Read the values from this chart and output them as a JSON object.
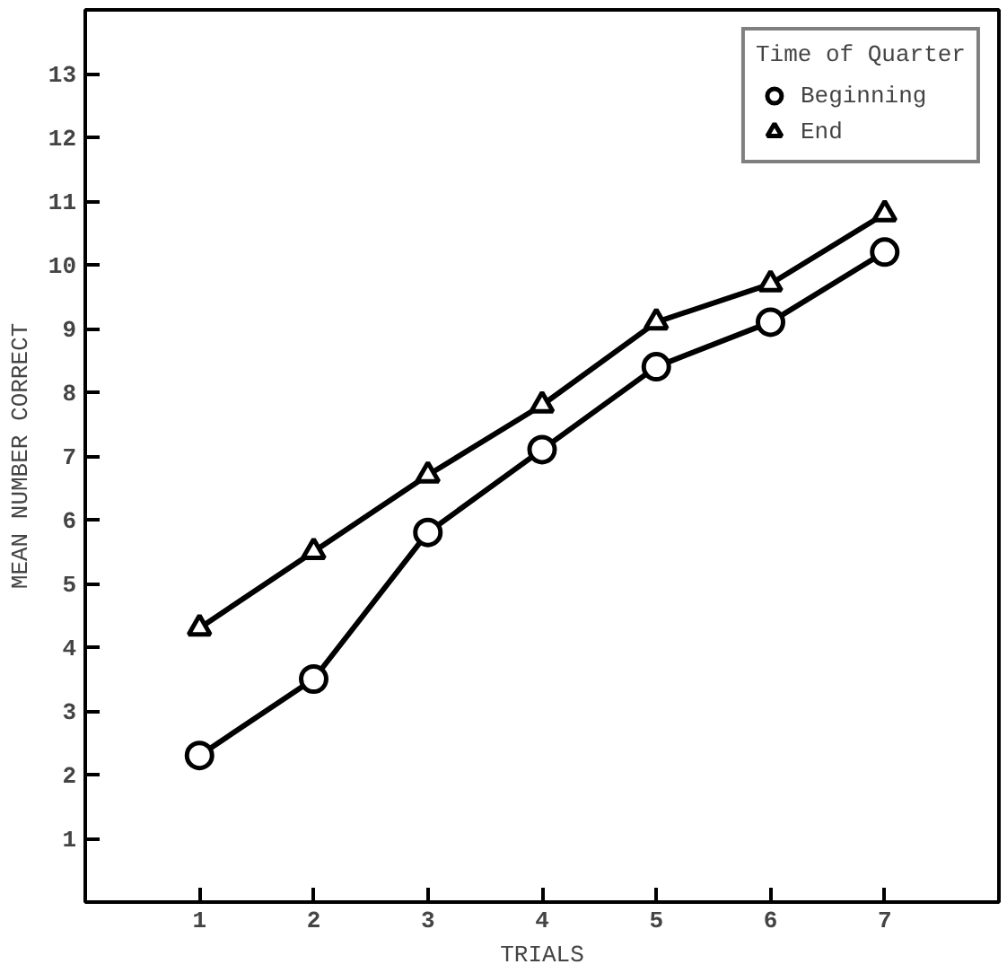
{
  "chart_data": {
    "type": "line",
    "xlabel": "TRIALS",
    "ylabel": "MEAN NUMBER CORRECT",
    "legend_title": "Time of Quarter",
    "x": [
      1,
      2,
      3,
      4,
      5,
      6,
      7
    ],
    "series": [
      {
        "name": "Beginning",
        "color": "#000000",
        "marker": "circle",
        "values": [
          2.3,
          3.5,
          5.8,
          7.1,
          8.4,
          9.1,
          10.2
        ]
      },
      {
        "name": "End",
        "color": "#000000",
        "marker": "triangle",
        "values": [
          4.3,
          5.5,
          6.7,
          7.8,
          9.1,
          9.7,
          10.8
        ]
      }
    ],
    "xlim": [
      0,
      8
    ],
    "ylim": [
      0,
      14
    ],
    "xticks": [
      1,
      2,
      3,
      4,
      5,
      6,
      7
    ],
    "yticks": [
      1,
      2,
      3,
      4,
      5,
      6,
      7,
      8,
      9,
      10,
      11,
      12,
      13
    ],
    "grid": false,
    "legend": "top right",
    "line_style": "solid"
  }
}
